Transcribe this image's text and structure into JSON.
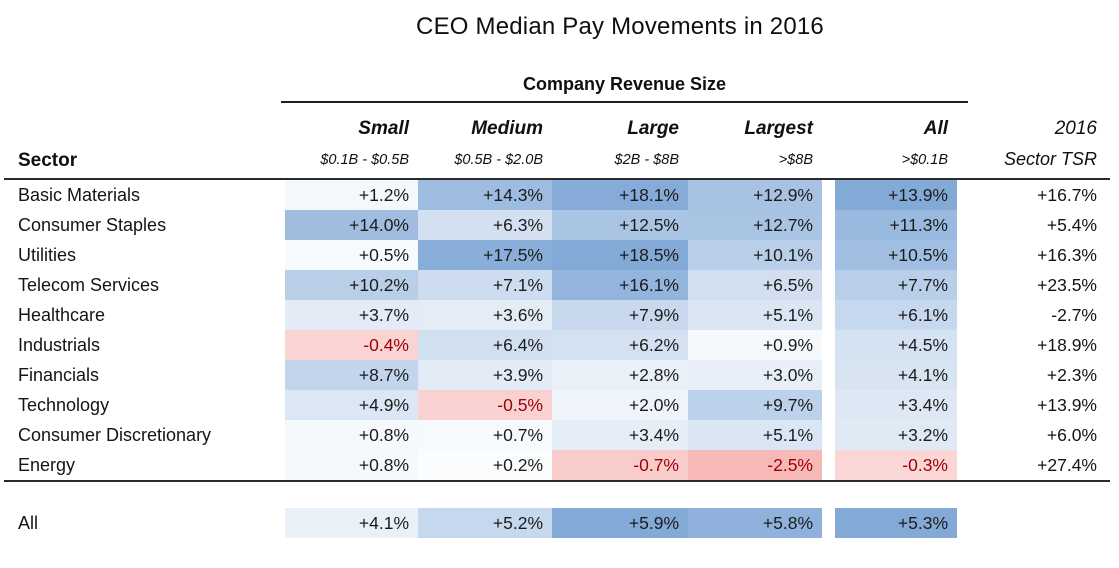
{
  "chart_data": {
    "type": "heatmap",
    "title": "CEO Median Pay Movements in 2016",
    "group_header": "Company Revenue Size",
    "row_header_label": "Sector",
    "columns": [
      {
        "label": "Small",
        "sublabel": "$0.1B - $0.5B"
      },
      {
        "label": "Medium",
        "sublabel": "$0.5B - $2.0B"
      },
      {
        "label": "Large",
        "sublabel": "$2B - $8B"
      },
      {
        "label": "Largest",
        "sublabel": ">$8B"
      },
      {
        "label": "All",
        "sublabel": ">$0.1B"
      }
    ],
    "tsr_column": {
      "line1": "2016",
      "line2": "Sector TSR"
    },
    "value_format": "signed percent with one decimal, e.g. +1.2% / -0.4%",
    "rows": [
      {
        "sector": "Basic Materials",
        "values": [
          1.2,
          14.3,
          18.1,
          12.9
        ],
        "all": 13.9,
        "tsr": 16.7
      },
      {
        "sector": "Consumer Staples",
        "values": [
          14.0,
          6.3,
          12.5,
          12.7
        ],
        "all": 11.3,
        "tsr": 5.4
      },
      {
        "sector": "Utilities",
        "values": [
          0.5,
          17.5,
          18.5,
          10.1
        ],
        "all": 10.5,
        "tsr": 16.3
      },
      {
        "sector": "Telecom Services",
        "values": [
          10.2,
          7.1,
          16.1,
          6.5
        ],
        "all": 7.7,
        "tsr": 23.5
      },
      {
        "sector": "Healthcare",
        "values": [
          3.7,
          3.6,
          7.9,
          5.1
        ],
        "all": 6.1,
        "tsr": -2.7
      },
      {
        "sector": "Industrials",
        "values": [
          -0.4,
          6.4,
          6.2,
          0.9
        ],
        "all": 4.5,
        "tsr": 18.9
      },
      {
        "sector": "Financials",
        "values": [
          8.7,
          3.9,
          2.8,
          3.0
        ],
        "all": 4.1,
        "tsr": 2.3
      },
      {
        "sector": "Technology",
        "values": [
          4.9,
          -0.5,
          2.0,
          9.7
        ],
        "all": 3.4,
        "tsr": 13.9
      },
      {
        "sector": "Consumer Discretionary",
        "values": [
          0.8,
          0.7,
          3.4,
          5.1
        ],
        "all": 3.2,
        "tsr": 6.0
      },
      {
        "sector": "Energy",
        "values": [
          0.8,
          0.2,
          -0.7,
          -2.5
        ],
        "all": -0.3,
        "tsr": 27.4
      }
    ],
    "summary_row": {
      "label": "All",
      "values": [
        4.1,
        5.2,
        5.9,
        5.8
      ],
      "all": 5.3
    },
    "colors": {
      "heat_blue": "#83A9D7",
      "heat_white": "#FBFDFE",
      "heat_pink": "#F7B8B8",
      "heat_pink_light": "#FEF8F8",
      "negative_text": "#9C0006",
      "text": "#1C1C1C",
      "rule": "#2B2B2B"
    },
    "scales": {
      "main": {
        "min": -2.5,
        "max": 18.5
      },
      "all_col": {
        "min": -0.3,
        "max": 13.9
      },
      "summary": {
        "min": 4.1,
        "max": 5.9
      },
      "negative_reference": 2.5
    },
    "legend": "blue = pay increase (darker = larger), pink = pay decrease; TSR column unshaded"
  }
}
